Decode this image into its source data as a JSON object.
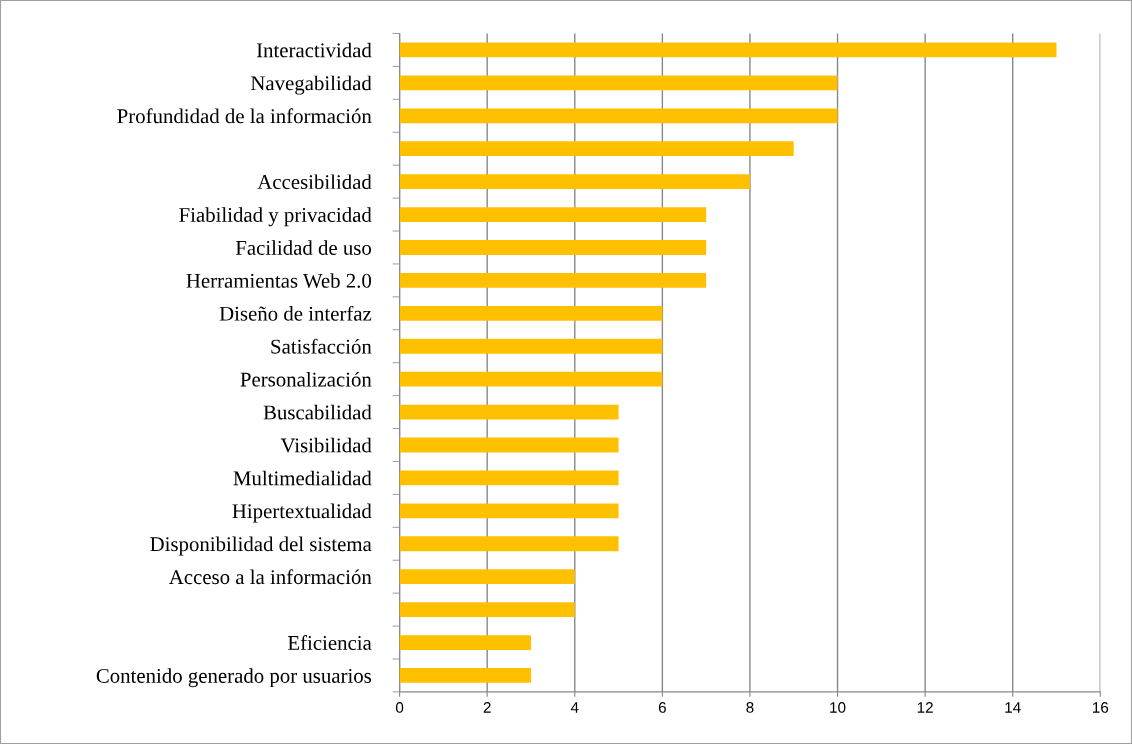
{
  "chart_data": {
    "type": "bar",
    "orientation": "horizontal",
    "categories": [
      "Interactividad",
      "Navegabilidad",
      "Profundidad de la información",
      null,
      "Accesibilidad",
      "Fiabilidad y privacidad",
      "Facilidad de uso",
      "Herramientas Web 2.0",
      "Diseño de interfaz",
      "Satisfacción",
      "Personalización",
      "Buscabilidad",
      "Visibilidad",
      "Multimedialidad",
      "Hipertextualidad",
      "Disponibilidad del sistema",
      "Acceso a la información",
      null,
      "Eficiencia",
      "Contenido generado por usuarios"
    ],
    "values": [
      15,
      10,
      10,
      9,
      8,
      7,
      7,
      7,
      6,
      6,
      6,
      5,
      5,
      5,
      5,
      5,
      4,
      4,
      3,
      3
    ],
    "color": "#ffc000",
    "xlim": [
      0,
      16
    ],
    "xticks": [
      0,
      2,
      4,
      6,
      8,
      10,
      12,
      14,
      16
    ],
    "grid": "x",
    "legend": false
  }
}
